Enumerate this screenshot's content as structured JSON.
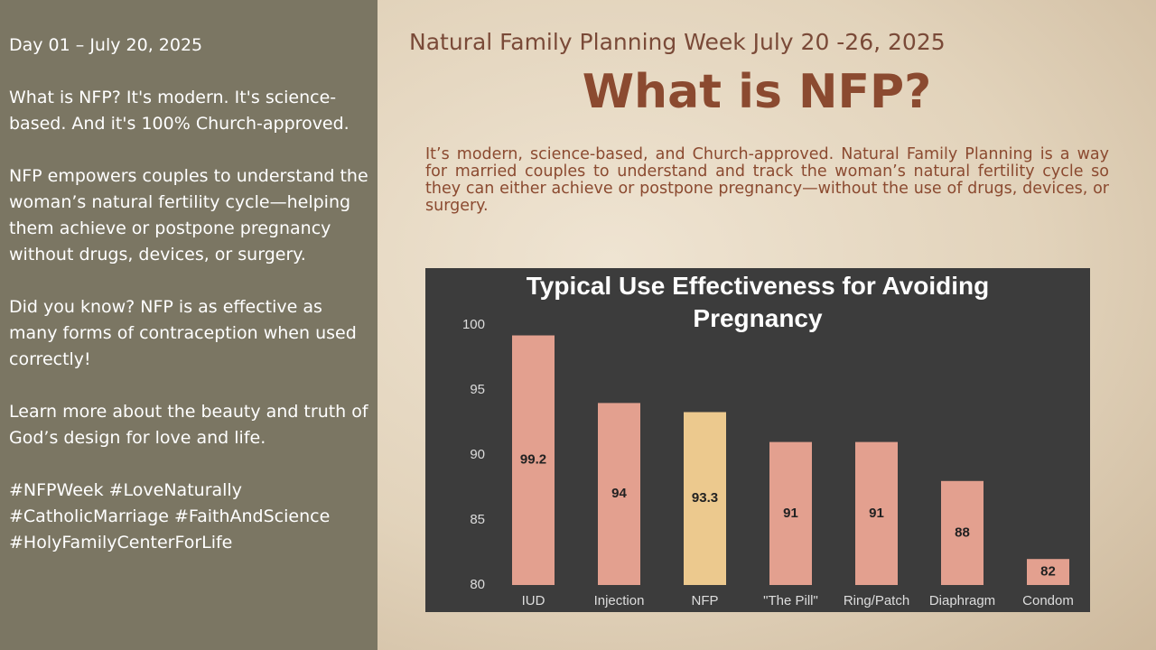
{
  "sidebar": {
    "paragraphs": [
      "Day 01 – July 20, 2025",
      "What is NFP? It's modern. It's science-based. And it's 100% Church-approved.",
      "NFP empowers couples to understand the woman’s natural fertility cycle—helping them achieve or postpone pregnancy without drugs, devices, or surgery.",
      "Did you know? NFP is as effective as many forms of contraception when used correctly!",
      "Learn more about the beauty and truth of God’s design for love and life."
    ],
    "hashtags": [
      "#NFPWeek #LoveNaturally",
      "#CatholicMarriage #FaithAndScience",
      "#HolyFamilyCenterForLife"
    ]
  },
  "slide": {
    "subtitle": "Natural Family Planning Week July 20 -26, 2025",
    "title": "What is NFP?",
    "body": "It’s modern, science-based, and Church-approved. Natural Family Planning is a way for married couples to understand and track the woman’s natural fertility cycle so they can either achieve or postpone pregnancy—without the use of drugs, devices, or surgery."
  },
  "chart_data": {
    "type": "bar",
    "title": "Typical Use Effectiveness for Avoiding Pregnancy",
    "categories": [
      "IUD",
      "Injection",
      "NFP",
      "\"The Pill\"",
      "Ring/Patch",
      "Diaphragm",
      "Condom"
    ],
    "values": [
      99.2,
      94,
      93.3,
      91,
      91,
      88,
      82
    ],
    "colors": [
      "#e3a08f",
      "#e3a08f",
      "#ecc98e",
      "#e3a08f",
      "#e3a08f",
      "#e3a08f",
      "#e3a08f"
    ],
    "ylim": [
      80,
      100
    ],
    "yticks": [
      80,
      85,
      90,
      95,
      100
    ],
    "grid": false
  }
}
